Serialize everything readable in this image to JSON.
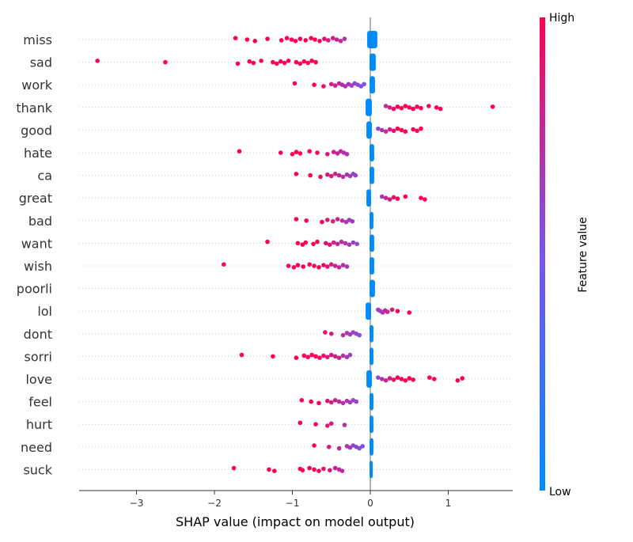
{
  "chart_data": {
    "type": "scatter",
    "subtype": "shap-beeswarm",
    "xlabel": "SHAP value (impact on model output)",
    "xlim": [
      -3.75,
      1.85
    ],
    "xticks": [
      {
        "value": -3,
        "label": "−3"
      },
      {
        "value": -2,
        "label": "−2"
      },
      {
        "value": -1,
        "label": "−1"
      },
      {
        "value": 0,
        "label": "0"
      },
      {
        "value": 1,
        "label": "1"
      }
    ],
    "colorbar": {
      "label": "Feature value",
      "high_label": "High",
      "low_label": "Low",
      "high_color": "#ff0052",
      "low_color": "#008bfb"
    },
    "zero_line_color": "#999999",
    "grid": "horizontal-dotted",
    "features": [
      {
        "name": "miss",
        "zero_cluster": [
          -0.04,
          0.09
        ],
        "zero_side": "right",
        "points": [
          -1.73,
          -1.58,
          -1.48,
          -1.32,
          -1.14,
          -1.07,
          -1.01,
          -0.96,
          -0.9,
          -0.83,
          -0.76,
          -0.71,
          -0.65,
          -0.59,
          -0.54,
          -0.48,
          -0.43,
          -0.38,
          -0.33
        ]
      },
      {
        "name": "sad",
        "zero_cluster": [
          -0.01,
          0.07
        ],
        "zero_side": "right",
        "points": [
          -3.5,
          -2.63,
          -1.7,
          -1.55,
          -1.5,
          -1.4,
          -1.25,
          -1.2,
          -1.15,
          -1.1,
          -1.05,
          -0.95,
          -0.9,
          -0.85,
          -0.8,
          -0.75,
          -0.7
        ]
      },
      {
        "name": "work",
        "zero_cluster": [
          -0.01,
          0.06
        ],
        "zero_side": "right",
        "points": [
          -0.97,
          -0.72,
          -0.6,
          -0.5,
          -0.45,
          -0.4,
          -0.36,
          -0.32,
          -0.28,
          -0.24,
          -0.2,
          -0.16,
          -0.12,
          -0.08
        ]
      },
      {
        "name": "thank",
        "zero_cluster": [
          -0.06,
          0.02
        ],
        "zero_side": "left",
        "points": [
          0.2,
          0.25,
          0.3,
          0.35,
          0.4,
          0.45,
          0.5,
          0.55,
          0.6,
          0.65,
          0.75,
          0.85,
          0.9,
          1.57
        ]
      },
      {
        "name": "good",
        "zero_cluster": [
          -0.05,
          0.02
        ],
        "zero_side": "left",
        "points": [
          0.1,
          0.15,
          0.2,
          0.25,
          0.3,
          0.35,
          0.4,
          0.45,
          0.55,
          0.6,
          0.65
        ]
      },
      {
        "name": "hate",
        "zero_cluster": [
          -0.01,
          0.05
        ],
        "zero_side": "right",
        "points": [
          -1.68,
          -1.15,
          -1.0,
          -0.95,
          -0.9,
          -0.78,
          -0.68,
          -0.55,
          -0.47,
          -0.42,
          -0.38,
          -0.34,
          -0.3
        ]
      },
      {
        "name": "ca",
        "zero_cluster": [
          -0.01,
          0.05
        ],
        "zero_side": "right",
        "points": [
          -0.95,
          -0.77,
          -0.64,
          -0.55,
          -0.5,
          -0.45,
          -0.4,
          -0.35,
          -0.3,
          -0.26,
          -0.22,
          -0.19
        ]
      },
      {
        "name": "great",
        "zero_cluster": [
          -0.05,
          0.01
        ],
        "zero_side": "left",
        "points": [
          0.15,
          0.2,
          0.25,
          0.3,
          0.35,
          0.45,
          0.65,
          0.7
        ]
      },
      {
        "name": "bad",
        "zero_cluster": [
          -0.01,
          0.04
        ],
        "zero_side": "right",
        "points": [
          -0.95,
          -0.82,
          -0.62,
          -0.55,
          -0.48,
          -0.42,
          -0.36,
          -0.31,
          -0.27,
          -0.23
        ]
      },
      {
        "name": "want",
        "zero_cluster": [
          -0.01,
          0.05
        ],
        "zero_side": "right",
        "points": [
          -1.32,
          -0.93,
          -0.87,
          -0.83,
          -0.73,
          -0.68,
          -0.57,
          -0.52,
          -0.47,
          -0.42,
          -0.37,
          -0.32,
          -0.27,
          -0.22,
          -0.17
        ]
      },
      {
        "name": "wish",
        "zero_cluster": [
          -0.01,
          0.05
        ],
        "zero_side": "right",
        "points": [
          -1.88,
          -1.05,
          -0.98,
          -0.93,
          -0.86,
          -0.78,
          -0.72,
          -0.66,
          -0.6,
          -0.55,
          -0.5,
          -0.45,
          -0.4,
          -0.35,
          -0.3
        ]
      },
      {
        "name": "poorli",
        "zero_cluster": [
          -0.01,
          0.06
        ],
        "zero_side": "right",
        "points": []
      },
      {
        "name": "lol",
        "zero_cluster": [
          -0.06,
          0.01
        ],
        "zero_side": "left",
        "points": [
          0.1,
          0.13,
          0.16,
          0.19,
          0.22,
          0.28,
          0.35,
          0.5
        ]
      },
      {
        "name": "dont",
        "zero_cluster": [
          -0.01,
          0.04
        ],
        "zero_side": "right",
        "points": [
          -0.58,
          -0.5,
          -0.35,
          -0.3,
          -0.26,
          -0.22,
          -0.18,
          -0.14
        ]
      },
      {
        "name": "sorri",
        "zero_cluster": [
          -0.01,
          0.04
        ],
        "zero_side": "right",
        "points": [
          -1.65,
          -1.25,
          -0.95,
          -0.85,
          -0.8,
          -0.75,
          -0.7,
          -0.65,
          -0.6,
          -0.55,
          -0.5,
          -0.45,
          -0.4,
          -0.35,
          -0.3,
          -0.26
        ]
      },
      {
        "name": "love",
        "zero_cluster": [
          -0.05,
          0.02
        ],
        "zero_side": "left",
        "points": [
          0.1,
          0.15,
          0.2,
          0.25,
          0.3,
          0.35,
          0.4,
          0.45,
          0.5,
          0.55,
          0.76,
          0.82,
          1.12,
          1.18
        ]
      },
      {
        "name": "feel",
        "zero_cluster": [
          -0.01,
          0.04
        ],
        "zero_side": "right",
        "points": [
          -0.88,
          -0.76,
          -0.66,
          -0.55,
          -0.5,
          -0.45,
          -0.4,
          -0.35,
          -0.3,
          -0.26,
          -0.22,
          -0.18
        ]
      },
      {
        "name": "hurt",
        "zero_cluster": [
          -0.01,
          0.04
        ],
        "zero_side": "right",
        "points": [
          -0.9,
          -0.7,
          -0.55,
          -0.5,
          -0.33
        ]
      },
      {
        "name": "need",
        "zero_cluster": [
          -0.01,
          0.04
        ],
        "zero_side": "right",
        "points": [
          -0.72,
          -0.53,
          -0.4,
          -0.3,
          -0.26,
          -0.22,
          -0.18,
          -0.14,
          -0.1
        ]
      },
      {
        "name": "suck",
        "zero_cluster": [
          -0.01,
          0.03
        ],
        "zero_side": "right",
        "points": [
          -1.75,
          -1.3,
          -1.23,
          -0.9,
          -0.87,
          -0.78,
          -0.72,
          -0.66,
          -0.6,
          -0.52,
          -0.45,
          -0.4,
          -0.36
        ]
      }
    ]
  }
}
